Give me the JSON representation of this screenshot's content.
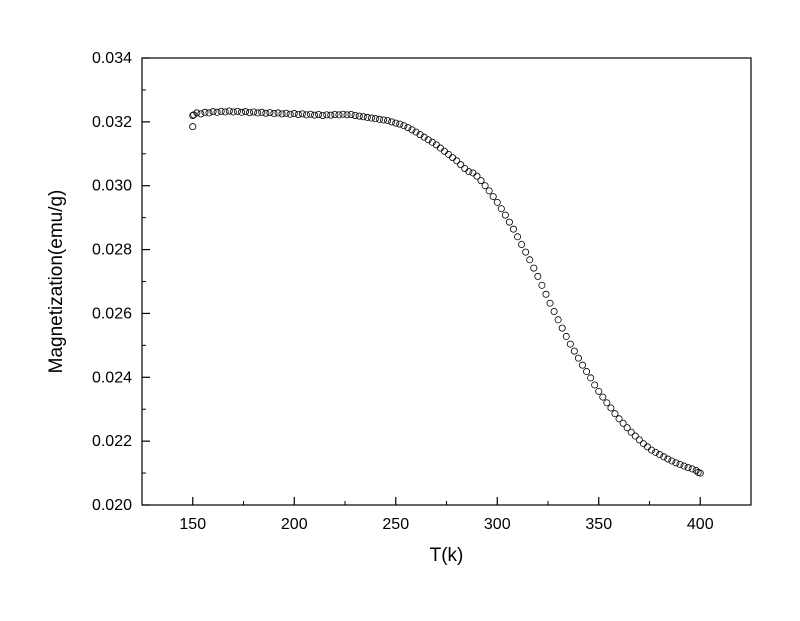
{
  "figure": {
    "background_color": "#ffffff",
    "frame_color": "#000000"
  },
  "chart_data": {
    "type": "scatter",
    "title": "",
    "xlabel": "T(k)",
    "ylabel": "Magnetization(emu/g)",
    "xlim": [
      125,
      425
    ],
    "ylim": [
      0.02,
      0.034
    ],
    "x_ticks": [
      150,
      200,
      250,
      300,
      350,
      400
    ],
    "x_tick_labels": [
      "150",
      "200",
      "250",
      "300",
      "350",
      "400"
    ],
    "y_ticks": [
      0.02,
      0.022,
      0.024,
      0.026,
      0.028,
      0.03,
      0.032,
      0.034
    ],
    "y_tick_labels": [
      "0.020",
      "0.022",
      "0.024",
      "0.026",
      "0.028",
      "0.030",
      "0.032",
      "0.034"
    ],
    "x_minor_ticks": [
      175,
      225,
      275,
      325,
      375
    ],
    "y_minor_ticks": [
      0.021,
      0.023,
      0.025,
      0.027,
      0.029,
      0.031,
      0.033
    ],
    "grid": false,
    "legend": false,
    "marker": {
      "shape": "open-circle",
      "color": "#000000",
      "radius": 3.1,
      "stroke_width": 0.8
    },
    "series": [
      {
        "name": "magnetization-vs-temperature",
        "points": [
          [
            150,
            0.0322
          ],
          [
            152,
            0.03228
          ],
          [
            154,
            0.03225
          ],
          [
            156,
            0.0323
          ],
          [
            158,
            0.03228
          ],
          [
            160,
            0.03232
          ],
          [
            162,
            0.0323
          ],
          [
            164,
            0.03233
          ],
          [
            166,
            0.03231
          ],
          [
            168,
            0.03234
          ],
          [
            170,
            0.03231
          ],
          [
            172,
            0.03233
          ],
          [
            174,
            0.0323
          ],
          [
            176,
            0.03232
          ],
          [
            178,
            0.03229
          ],
          [
            180,
            0.03231
          ],
          [
            182,
            0.03228
          ],
          [
            184,
            0.0323
          ],
          [
            186,
            0.03227
          ],
          [
            188,
            0.03229
          ],
          [
            190,
            0.03226
          ],
          [
            192,
            0.03228
          ],
          [
            194,
            0.03225
          ],
          [
            196,
            0.03227
          ],
          [
            198,
            0.03224
          ],
          [
            200,
            0.03226
          ],
          [
            202,
            0.03223
          ],
          [
            204,
            0.03225
          ],
          [
            206,
            0.03222
          ],
          [
            208,
            0.03224
          ],
          [
            210,
            0.03221
          ],
          [
            212,
            0.03223
          ],
          [
            214,
            0.0322
          ],
          [
            216,
            0.03222
          ],
          [
            218,
            0.03221
          ],
          [
            220,
            0.03223
          ],
          [
            222,
            0.03222
          ],
          [
            224,
            0.03224
          ],
          [
            226,
            0.03222
          ],
          [
            228,
            0.03223
          ],
          [
            230,
            0.0322
          ],
          [
            232,
            0.03218
          ],
          [
            234,
            0.03216
          ],
          [
            236,
            0.03214
          ],
          [
            238,
            0.03212
          ],
          [
            240,
            0.0321
          ],
          [
            242,
            0.03208
          ],
          [
            244,
            0.03206
          ],
          [
            246,
            0.03204
          ],
          [
            248,
            0.032
          ],
          [
            250,
            0.03196
          ],
          [
            252,
            0.03193
          ],
          [
            254,
            0.03188
          ],
          [
            256,
            0.03182
          ],
          [
            258,
            0.03175
          ],
          [
            260,
            0.03168
          ],
          [
            262,
            0.0316
          ],
          [
            264,
            0.03152
          ],
          [
            266,
            0.03144
          ],
          [
            268,
            0.03136
          ],
          [
            270,
            0.03128
          ],
          [
            272,
            0.03118
          ],
          [
            274,
            0.03108
          ],
          [
            276,
            0.03098
          ],
          [
            278,
            0.03088
          ],
          [
            280,
            0.03078
          ],
          [
            282,
            0.03066
          ],
          [
            284,
            0.03054
          ],
          [
            286,
            0.03044
          ],
          [
            288,
            0.0304
          ],
          [
            290,
            0.0303
          ],
          [
            292,
            0.03016
          ],
          [
            294,
            0.03
          ],
          [
            296,
            0.02984
          ],
          [
            298,
            0.02966
          ],
          [
            300,
            0.02948
          ],
          [
            302,
            0.02928
          ],
          [
            304,
            0.02908
          ],
          [
            306,
            0.02886
          ],
          [
            308,
            0.02864
          ],
          [
            310,
            0.0284
          ],
          [
            312,
            0.02816
          ],
          [
            314,
            0.02792
          ],
          [
            316,
            0.02768
          ],
          [
            318,
            0.02742
          ],
          [
            320,
            0.02716
          ],
          [
            322,
            0.02688
          ],
          [
            324,
            0.0266
          ],
          [
            326,
            0.02632
          ],
          [
            328,
            0.02606
          ],
          [
            330,
            0.0258
          ],
          [
            332,
            0.02554
          ],
          [
            334,
            0.02528
          ],
          [
            336,
            0.02504
          ],
          [
            338,
            0.02482
          ],
          [
            340,
            0.0246
          ],
          [
            342,
            0.02438
          ],
          [
            344,
            0.02418
          ],
          [
            346,
            0.02398
          ],
          [
            348,
            0.02376
          ],
          [
            350,
            0.02356
          ],
          [
            352,
            0.02338
          ],
          [
            354,
            0.0232
          ],
          [
            356,
            0.02304
          ],
          [
            358,
            0.02286
          ],
          [
            360,
            0.0227
          ],
          [
            362,
            0.02256
          ],
          [
            364,
            0.02242
          ],
          [
            366,
            0.02228
          ],
          [
            368,
            0.02216
          ],
          [
            370,
            0.02204
          ],
          [
            372,
            0.02192
          ],
          [
            374,
            0.02182
          ],
          [
            376,
            0.02172
          ],
          [
            378,
            0.02165
          ],
          [
            380,
            0.02158
          ],
          [
            382,
            0.02151
          ],
          [
            384,
            0.02144
          ],
          [
            386,
            0.02138
          ],
          [
            388,
            0.02132
          ],
          [
            390,
            0.02127
          ],
          [
            392,
            0.02122
          ],
          [
            394,
            0.02117
          ],
          [
            396,
            0.02113
          ],
          [
            398,
            0.02108
          ],
          [
            400,
            0.021
          ]
        ]
      }
    ],
    "outlier_points": [
      [
        150,
        0.03185
      ],
      [
        150.5,
        0.03222
      ],
      [
        399,
        0.02102
      ]
    ]
  }
}
